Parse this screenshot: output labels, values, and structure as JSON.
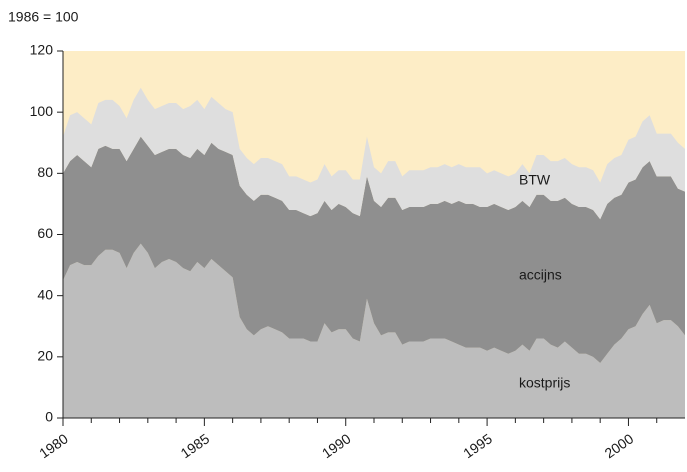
{
  "chart_data": {
    "type": "stacked_area",
    "subtitle": "1986 = 100",
    "background": "#fdedc6",
    "x": [
      1980,
      1980.25,
      1980.5,
      1980.75,
      1981,
      1981.25,
      1981.5,
      1981.75,
      1982,
      1982.25,
      1982.5,
      1982.75,
      1983,
      1983.25,
      1983.5,
      1983.75,
      1984,
      1984.25,
      1984.5,
      1984.75,
      1985,
      1985.25,
      1985.5,
      1985.75,
      1986,
      1986.25,
      1986.5,
      1986.75,
      1987,
      1987.25,
      1987.5,
      1987.75,
      1988,
      1988.25,
      1988.5,
      1988.75,
      1989,
      1989.25,
      1989.5,
      1989.75,
      1990,
      1990.25,
      1990.5,
      1990.75,
      1991,
      1991.25,
      1991.5,
      1991.75,
      1992,
      1992.25,
      1992.5,
      1992.75,
      1993,
      1993.25,
      1993.5,
      1993.75,
      1994,
      1994.25,
      1994.5,
      1994.75,
      1995,
      1995.25,
      1995.5,
      1995.75,
      1996,
      1996.25,
      1996.5,
      1996.75,
      1997,
      1997.25,
      1997.5,
      1997.75,
      1998,
      1998.25,
      1998.5,
      1998.75,
      1999,
      1999.25,
      1999.5,
      1999.75,
      2000,
      2000.25,
      2000.5,
      2000.75,
      2001,
      2001.25,
      2001.5,
      2001.75,
      2002
    ],
    "series": [
      {
        "name": "kostprijs",
        "color": "#bdbdbd",
        "values": [
          45,
          50,
          51,
          50,
          50,
          53,
          55,
          55,
          54,
          49,
          54,
          57,
          54,
          49,
          51,
          52,
          51,
          49,
          48,
          51,
          49,
          52,
          50,
          48,
          46,
          33,
          29,
          27,
          29,
          30,
          29,
          28,
          26,
          26,
          26,
          25,
          25,
          31,
          28,
          29,
          29,
          26,
          25,
          39,
          31,
          27,
          28,
          28,
          24,
          25,
          25,
          25,
          26,
          26,
          26,
          25,
          24,
          23,
          23,
          23,
          22,
          23,
          22,
          21,
          22,
          24,
          22,
          26,
          26,
          24,
          23,
          25,
          23,
          21,
          21,
          20,
          18,
          21,
          24,
          26,
          29,
          30,
          34,
          37,
          31,
          32,
          32,
          30,
          27
        ]
      },
      {
        "name": "accijns",
        "color": "#8f8f8f",
        "values": [
          35,
          34,
          35,
          34,
          32,
          35,
          34,
          33,
          34,
          35,
          34,
          35,
          35,
          37,
          36,
          36,
          37,
          37,
          37,
          37,
          37,
          38,
          38,
          39,
          40,
          43,
          44,
          44,
          44,
          43,
          43,
          43,
          42,
          42,
          41,
          41,
          42,
          40,
          40,
          41,
          40,
          41,
          41,
          40,
          40,
          42,
          44,
          44,
          44,
          44,
          44,
          44,
          44,
          44,
          45,
          45,
          47,
          47,
          47,
          46,
          47,
          47,
          47,
          47,
          47,
          47,
          47,
          47,
          47,
          47,
          48,
          47,
          47,
          48,
          48,
          48,
          47,
          49,
          48,
          47,
          48,
          48,
          48,
          47,
          48,
          47,
          47,
          45,
          47
        ]
      },
      {
        "name": "BTW",
        "color": "#dedede",
        "values": [
          12,
          15,
          14,
          14,
          14,
          15,
          15,
          16,
          14,
          14,
          16,
          16,
          15,
          15,
          15,
          15,
          15,
          15,
          17,
          16,
          15,
          15,
          15,
          14,
          14,
          12,
          12,
          12,
          12,
          12,
          12,
          12,
          11,
          11,
          11,
          11,
          11,
          12,
          11,
          11,
          12,
          11,
          12,
          13,
          11,
          11,
          12,
          12,
          11,
          12,
          12,
          12,
          12,
          12,
          12,
          12,
          12,
          12,
          12,
          13,
          11,
          11,
          11,
          11,
          11,
          12,
          11,
          13,
          13,
          13,
          13,
          13,
          13,
          13,
          13,
          13,
          12,
          13,
          13,
          13,
          14,
          14,
          15,
          15,
          14,
          14,
          14,
          15,
          14
        ]
      }
    ],
    "xlim": [
      1980,
      2002
    ],
    "xticks": [
      1980,
      1985,
      1990,
      1995,
      2000
    ],
    "xticks_minor": [
      1981,
      1982,
      1983,
      1984,
      1986,
      1987,
      1988,
      1989,
      1991,
      1992,
      1993,
      1994,
      1996,
      1997,
      1998,
      1999,
      2001
    ],
    "ylim": [
      0,
      120
    ],
    "yticks": [
      0,
      20,
      40,
      60,
      80,
      100,
      120
    ],
    "grid": false
  }
}
